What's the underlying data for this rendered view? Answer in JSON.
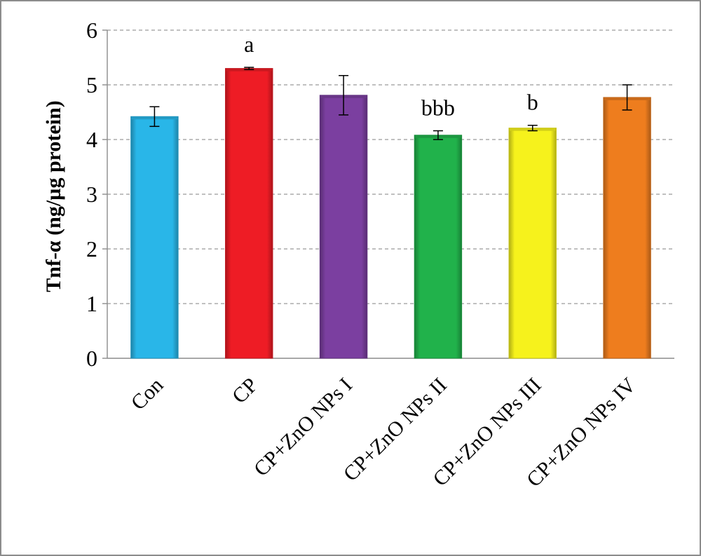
{
  "chart_data": {
    "type": "bar",
    "title": "",
    "xlabel": "",
    "ylabel": "Tnf-α (ng/µg protein)",
    "ylim": [
      0,
      6
    ],
    "yticks": [
      0,
      1,
      2,
      3,
      4,
      5,
      6
    ],
    "grid": true,
    "categories": [
      "Con",
      "CP",
      "CP+ZnO NPs I",
      "CP+ZnO NPs II",
      "CP+ZnO NPs III",
      "CP+ZnO NPs IV"
    ],
    "values": [
      4.42,
      5.3,
      4.81,
      4.08,
      4.21,
      4.77
    ],
    "errors": [
      0.18,
      0.02,
      0.36,
      0.08,
      0.05,
      0.23
    ],
    "significance": [
      "",
      "a",
      "",
      "bbb",
      "b",
      ""
    ],
    "colors": [
      "#29b6e8",
      "#ee1c25",
      "#7b3fa0",
      "#21b24b",
      "#f6f21c",
      "#ee7d1e"
    ]
  }
}
